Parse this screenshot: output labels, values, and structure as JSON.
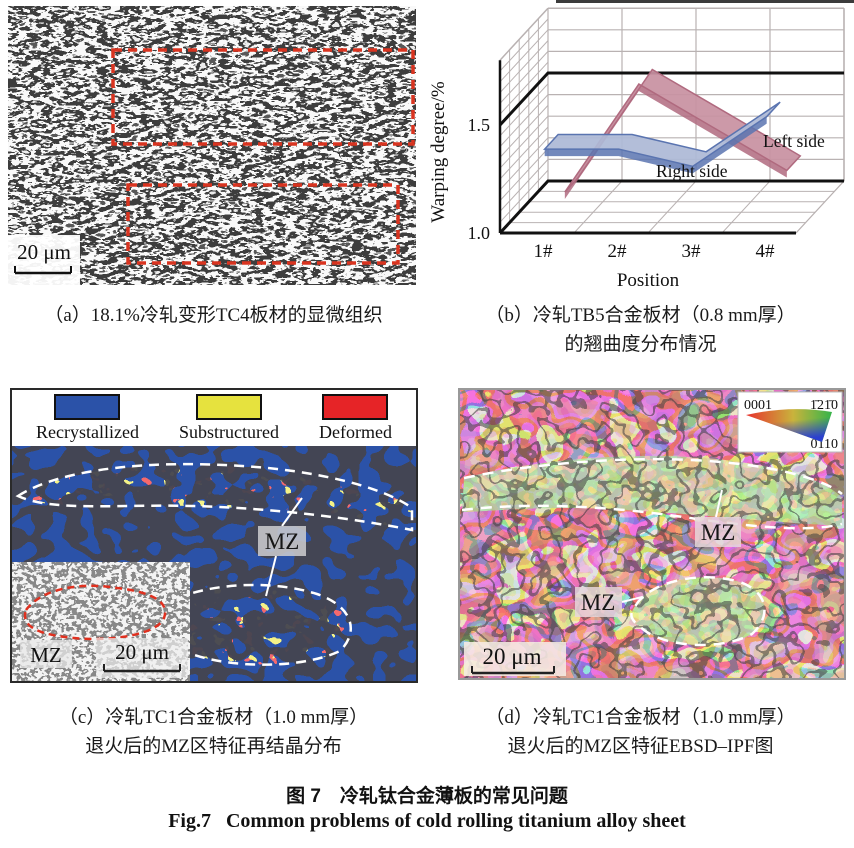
{
  "panel_a": {
    "caption": "（a）18.1%冷轧变形TC4板材的显微组织",
    "scale_bar": "20 μm"
  },
  "panel_b": {
    "caption_line1": "（b）冷轧TB5合金板材（0.8 mm厚）",
    "caption_line2": "的翘曲度分布情况"
  },
  "chart_data": {
    "type": "ribbon3d-line",
    "title": "",
    "xlabel": "Position",
    "ylabel": "Warping degree/%",
    "categories": [
      "1#",
      "2#",
      "3#",
      "4#"
    ],
    "series": [
      {
        "name": "Left side",
        "values": [
          1.05,
          1.55,
          1.35,
          1.15
        ],
        "color": "#c891a1",
        "edge": "#b06a7f",
        "depth": 0.72
      },
      {
        "name": "Right side",
        "values": [
          1.35,
          1.35,
          1.27,
          1.5
        ],
        "color": "#adb9d6",
        "edge": "#5a74b0",
        "depth": 0.3
      }
    ],
    "ylim": [
      1.0,
      1.8
    ],
    "yticks": [
      1.0,
      1.5
    ],
    "grid": true,
    "legend_position": "inline-right"
  },
  "panel_c": {
    "legend": [
      {
        "label": "Recrystallized",
        "color": "#2b52a8"
      },
      {
        "label": "Substructured",
        "color": "#e6e23e"
      },
      {
        "label": "Deformed",
        "color": "#e62427"
      }
    ],
    "mz_label": "MZ",
    "inset_mz_label": "MZ",
    "inset_scale_bar": "20 μm",
    "caption_line1": "（c）冷轧TC1合金板材（1.0 mm厚）",
    "caption_line2": "退火后的MZ区特征再结晶分布"
  },
  "panel_d": {
    "mz_label_upper": "MZ",
    "mz_label_lower": "MZ",
    "scale_bar": "20 μm",
    "ipf_labels": {
      "top_left": "0001",
      "top_right": "1̄21̄0",
      "bottom_right": "0110"
    },
    "caption_line1": "（d）冷轧TC1合金板材（1.0 mm厚）",
    "caption_line2": "退火后的MZ区特征EBSD–IPF图"
  },
  "figure_caption": {
    "zh": "图 7　冷轧钛合金薄板的常见问题",
    "en": "Fig.7   Common problems of cold rolling titanium alloy sheet"
  }
}
